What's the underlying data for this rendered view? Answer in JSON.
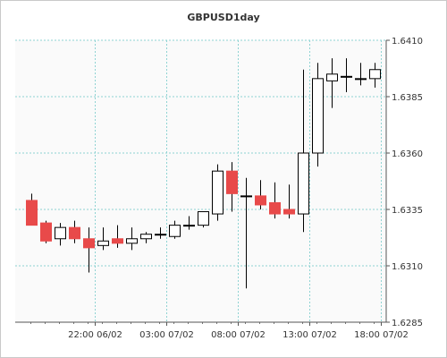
{
  "chart_data": {
    "type": "candlestick",
    "title": "GBPUSD1day",
    "xlabel": "",
    "ylabel": "",
    "ylim": [
      1.6285,
      1.641
    ],
    "y_ticks": [
      "1.6410",
      "1.6385",
      "1.6360",
      "1.6335",
      "1.6310",
      "1.6285"
    ],
    "x_ticks": [
      {
        "label": "22:00 06/02",
        "index": 4.5
      },
      {
        "label": "03:00 07/02",
        "index": 9.5
      },
      {
        "label": "08:00 07/02",
        "index": 14.5
      },
      {
        "label": "13:00 07/02",
        "index": 19.5
      },
      {
        "label": "18:00 07/02",
        "index": 24.5
      }
    ],
    "grid": true,
    "colors": {
      "bearish": "#e84a4a",
      "bullish": "#ffffff",
      "outline": "#000000",
      "grid": "#8fd3d3",
      "plot_bg": "#fafafa"
    },
    "candles": [
      {
        "open": 1.6339,
        "high": 1.6342,
        "low": 1.6328,
        "close": 1.6328
      },
      {
        "open": 1.6329,
        "high": 1.633,
        "low": 1.632,
        "close": 1.6321
      },
      {
        "open": 1.6322,
        "high": 1.6329,
        "low": 1.6319,
        "close": 1.6327
      },
      {
        "open": 1.6327,
        "high": 1.633,
        "low": 1.632,
        "close": 1.6322
      },
      {
        "open": 1.6322,
        "high": 1.6327,
        "low": 1.6307,
        "close": 1.6318
      },
      {
        "open": 1.6319,
        "high": 1.6327,
        "low": 1.6317,
        "close": 1.6321
      },
      {
        "open": 1.6322,
        "high": 1.6328,
        "low": 1.6318,
        "close": 1.632
      },
      {
        "open": 1.632,
        "high": 1.6327,
        "low": 1.6317,
        "close": 1.6322
      },
      {
        "open": 1.6322,
        "high": 1.6325,
        "low": 1.632,
        "close": 1.6324
      },
      {
        "open": 1.6324,
        "high": 1.6327,
        "low": 1.6322,
        "close": 1.6324
      },
      {
        "open": 1.6323,
        "high": 1.633,
        "low": 1.6322,
        "close": 1.6328
      },
      {
        "open": 1.6328,
        "high": 1.6332,
        "low": 1.6326,
        "close": 1.6328
      },
      {
        "open": 1.6328,
        "high": 1.6334,
        "low": 1.6327,
        "close": 1.6334
      },
      {
        "open": 1.6333,
        "high": 1.6355,
        "low": 1.633,
        "close": 1.6352
      },
      {
        "open": 1.6352,
        "high": 1.6356,
        "low": 1.6334,
        "close": 1.6342
      },
      {
        "open": 1.6341,
        "high": 1.6349,
        "low": 1.63,
        "close": 1.6341
      },
      {
        "open": 1.6341,
        "high": 1.6348,
        "low": 1.6335,
        "close": 1.6337
      },
      {
        "open": 1.6338,
        "high": 1.6347,
        "low": 1.6331,
        "close": 1.6333
      },
      {
        "open": 1.6335,
        "high": 1.6346,
        "low": 1.6331,
        "close": 1.6333
      },
      {
        "open": 1.6333,
        "high": 1.6397,
        "low": 1.6325,
        "close": 1.636
      },
      {
        "open": 1.636,
        "high": 1.64,
        "low": 1.6354,
        "close": 1.6393
      },
      {
        "open": 1.6392,
        "high": 1.6402,
        "low": 1.638,
        "close": 1.6395
      },
      {
        "open": 1.6394,
        "high": 1.6402,
        "low": 1.6387,
        "close": 1.6394
      },
      {
        "open": 1.6393,
        "high": 1.64,
        "low": 1.639,
        "close": 1.6393
      },
      {
        "open": 1.6393,
        "high": 1.64,
        "low": 1.6389,
        "close": 1.6397
      }
    ]
  }
}
